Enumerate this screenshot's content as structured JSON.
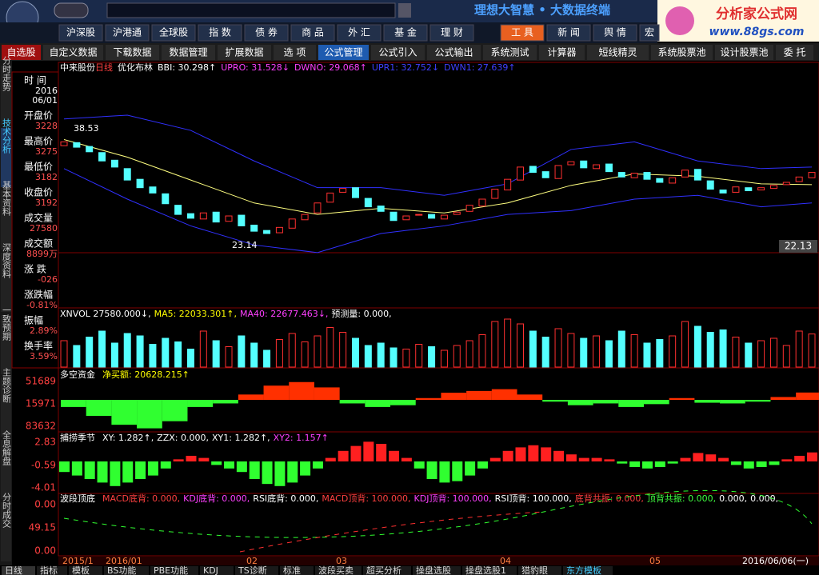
{
  "toolbar": {
    "app_title": "理想大智慧 • 大数据终端",
    "brand": "分析家公式网",
    "brand_url": "www.88gs.com"
  },
  "market_tabs": [
    "沪深股",
    "沪港通",
    "全球股",
    "指 数",
    "债 券",
    "商 品",
    "外 汇",
    "基 金",
    "理 财"
  ],
  "tool_tabs": [
    "工 具",
    "新 闻",
    "舆 情",
    "宏"
  ],
  "function_menu": [
    "自选股",
    "自定义数据",
    "下载数据",
    "数据管理",
    "扩展数据",
    "选 项",
    "公式管理",
    "公式引入",
    "公式输出",
    "系统测试",
    "计算器",
    "短线精灵",
    "系统股票池",
    "设计股票池",
    "委 托"
  ],
  "side_tabs": [
    "分时走势",
    "技术分析",
    "基本资料",
    "深度资料",
    "一致预期",
    "主题诊断",
    "全息解盘",
    "分时成交"
  ],
  "info_panel": [
    {
      "label": "时 间",
      "values": [
        "2016",
        "06/01"
      ]
    },
    {
      "label": "开盘价",
      "values": [
        "3228"
      ]
    },
    {
      "label": "最高价",
      "values": [
        "3275"
      ]
    },
    {
      "label": "最低价",
      "values": [
        "3182"
      ]
    },
    {
      "label": "收盘价",
      "values": [
        "3192"
      ]
    },
    {
      "label": "成交量",
      "values": [
        "27580"
      ]
    },
    {
      "label": "成交额",
      "values": [
        "8899万"
      ]
    },
    {
      "label": "涨 跌",
      "values": [
        "-026"
      ]
    },
    {
      "label": "涨跌幅",
      "values": [
        "-0.81%"
      ]
    },
    {
      "label": "振幅",
      "values": [
        "2.89%"
      ]
    },
    {
      "label": "换手率",
      "values": [
        "3.59%"
      ]
    }
  ],
  "price_panel": {
    "title": "中来股份",
    "period": "日线",
    "indicator": "优化布林",
    "readouts": [
      {
        "text": "BBI: 30.298↑",
        "color": "#ffffff"
      },
      {
        "text": "UPRO: 31.528↓",
        "color": "#ff40ff"
      },
      {
        "text": "DWNO: 29.068↑",
        "color": "#ff40ff"
      },
      {
        "text": "UPR1: 32.752↓",
        "color": "#4040ff"
      },
      {
        "text": "DWN1: 27.639↑",
        "color": "#4040ff"
      }
    ],
    "high_label": "38.53",
    "low_label": "23.14",
    "last_label": "22.13",
    "opens": [
      36.0,
      36.4,
      35.9,
      35.1,
      34.1,
      33.0,
      31.6,
      30.6,
      29.7,
      28.2,
      27.1,
      26.4,
      27.3,
      26.1,
      26.9,
      25.6,
      24.9,
      24.6,
      25.2,
      26.3,
      27.2,
      28.6,
      29.9,
      30.5,
      29.1,
      28.1,
      27.3,
      26.3,
      26.9,
      27.0,
      26.4,
      27.0,
      27.4,
      28.1,
      29.1,
      30.2,
      31.5,
      33.3,
      32.6,
      31.7,
      33.5,
      34.0,
      33.0,
      33.6,
      32.5,
      31.8,
      32.5,
      31.7,
      31.1,
      31.9,
      32.9,
      31.4,
      30.2,
      29.9,
      30.5,
      30.2,
      30.4,
      30.9,
      31.3,
      31.8
    ],
    "closes": [
      36.5,
      35.8,
      35.2,
      34.0,
      33.2,
      31.5,
      30.5,
      29.8,
      28.4,
      27.0,
      26.5,
      27.2,
      26.0,
      26.8,
      25.5,
      24.8,
      24.5,
      25.3,
      26.4,
      27.0,
      28.5,
      29.8,
      30.4,
      29.2,
      28.0,
      27.4,
      26.2,
      26.8,
      27.0,
      26.5,
      26.9,
      27.3,
      28.2,
      29.0,
      30.3,
      31.6,
      33.2,
      32.5,
      31.8,
      33.4,
      33.9,
      33.1,
      33.5,
      32.6,
      31.9,
      32.4,
      31.6,
      31.2,
      31.8,
      32.8,
      31.5,
      30.3,
      29.8,
      30.6,
      30.1,
      30.5,
      30.8,
      31.2,
      31.9,
      32.5
    ],
    "upper": [
      39.5,
      40.0,
      38.0,
      34.0,
      30.5,
      30.5,
      29.5,
      31.0,
      35.5,
      36.5,
      34.0,
      33.0,
      33.2
    ],
    "mid": [
      36.8,
      34.5,
      31.5,
      28.5,
      27.0,
      27.8,
      27.2,
      28.5,
      30.8,
      32.3,
      32.0,
      31.0,
      30.9
    ],
    "lower": [
      33.0,
      29.0,
      25.5,
      23.0,
      22.0,
      24.5,
      25.5,
      27.0,
      27.5,
      29.0,
      29.5,
      28.0,
      28.5
    ]
  },
  "volume_panel": {
    "readouts": [
      {
        "text": "XNVOL 27580.000↓,",
        "color": "#ffffff"
      },
      {
        "text": "MA5: 22033.301↑,",
        "color": "#ffff00"
      },
      {
        "text": "MA40: 22677.463↓,",
        "color": "#ff40ff"
      },
      {
        "text": "预测量: 0.000,",
        "color": "#ffffff"
      }
    ],
    "values": [
      22000,
      18000,
      25000,
      30000,
      20000,
      28000,
      26000,
      19000,
      24000,
      21000,
      15000,
      30000,
      22000,
      17000,
      26000,
      20000,
      14000,
      23000,
      28000,
      21000,
      26000,
      33000,
      29000,
      24000,
      18000,
      20000,
      16000,
      15000,
      19000,
      17000,
      14000,
      18000,
      22000,
      27000,
      38000,
      40000,
      36000,
      30000,
      25000,
      32000,
      28000,
      24000,
      26000,
      22000,
      30000,
      27000,
      20000,
      23000,
      26000,
      38000,
      34000,
      29000,
      31000,
      25000,
      20000,
      22000,
      24000,
      18000,
      30000,
      27580
    ]
  },
  "flow_panel": {
    "name": "多空资金",
    "readouts": [
      {
        "text": "净买额: 20628.215↑",
        "color": "#ffff00"
      }
    ],
    "axis": [
      "51689",
      "15971",
      "83632"
    ],
    "values": [
      -20000,
      -45000,
      -70000,
      -80000,
      -60000,
      -20000,
      -10000,
      15000,
      40000,
      50000,
      35000,
      -10000,
      -20000,
      -15000,
      5000,
      20000,
      25000,
      30000,
      15000,
      -5000,
      -15000,
      -10000,
      -20000,
      -12000,
      5000,
      -8000,
      -10000,
      -5000,
      8000,
      20628
    ]
  },
  "season_panel": {
    "name": "捕捞季节",
    "readouts": [
      {
        "text": "XY: 1.282↑,",
        "color": "#ffffff"
      },
      {
        "text": "ZZX: 0.000,",
        "color": "#ffffff"
      },
      {
        "text": "XY1: 1.282↑,",
        "color": "#ffffff"
      },
      {
        "text": "XY2: 1.157↑",
        "color": "#ff40ff"
      }
    ],
    "axis": [
      "2.83",
      "-0.59",
      "-4.01"
    ],
    "values": [
      -1.5,
      -2,
      -2.5,
      -3,
      -3.5,
      -3,
      -2.5,
      -2,
      -1,
      0.3,
      0.8,
      0.5,
      -0.5,
      -1,
      -1.5,
      -2.5,
      -3.2,
      -3.5,
      -3,
      -2,
      -1,
      0.5,
      1.5,
      2.2,
      2.8,
      2.5,
      1.5,
      0.5,
      -1,
      -2.5,
      -3,
      -2.8,
      -2,
      -1,
      0.5,
      1.5,
      2,
      2.3,
      2,
      1.5,
      1,
      0.5,
      0.5,
      0.3,
      -0.3,
      -0.8,
      -1,
      -0.8,
      -0.3,
      0.5,
      1.2,
      1.0,
      0.5,
      -0.5,
      -1,
      -0.8,
      -0.5,
      0.3,
      0.8,
      1.282
    ]
  },
  "band_panel": {
    "name": "波段顶底",
    "readouts": [
      {
        "text": "MACD底背: 0.000,",
        "color": "#ff4040"
      },
      {
        "text": "KDJ底背: 0.000,",
        "color": "#ff40ff"
      },
      {
        "text": "RSI底背: 0.000,",
        "color": "#ffffff"
      },
      {
        "text": "MACD顶背: 100.000,",
        "color": "#ff4040"
      },
      {
        "text": "KDJ顶背: 100.000,",
        "color": "#ff40ff"
      },
      {
        "text": "RSI顶背: 100.000,",
        "color": "#ffffff"
      },
      {
        "text": "底背共振: 0.000,",
        "color": "#ff4040"
      },
      {
        "text": "顶背共振: 0.000,",
        "color": "#40ff40"
      },
      {
        "text": "0.000,",
        "color": "#ffffff"
      },
      {
        "text": "0.000,",
        "color": "#ffffff"
      }
    ],
    "axis": [
      "0.00",
      "49.15",
      "0.00"
    ]
  },
  "date_axis": [
    "2015/1",
    "2016/01",
    "02",
    "03",
    "04",
    "05",
    "2016/06/06(一)"
  ],
  "bottom_tabs": [
    "日线",
    "指标",
    "模板",
    "BS功能",
    "PBE功能",
    "KDJ",
    "TS诊断",
    "标准",
    "波段买卖",
    "超买分析",
    "操盘选股",
    "操盘选股1",
    "猎豹眼",
    "东方模板"
  ]
}
